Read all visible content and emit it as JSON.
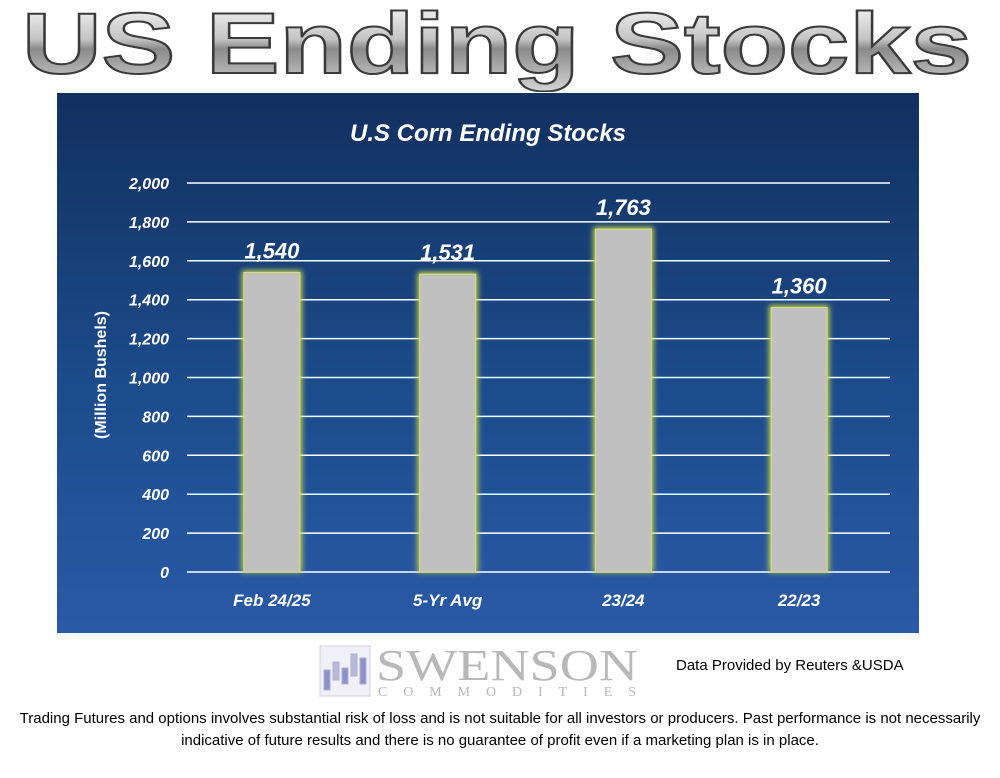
{
  "headline": "US Ending Stocks",
  "chart_data": {
    "type": "bar",
    "title": "U.S Corn Ending Stocks",
    "xlabel": "",
    "ylabel": "(Million Bushels)",
    "categories": [
      "Feb 24/25",
      "5-Yr Avg",
      "23/24",
      "22/23"
    ],
    "values": [
      1540,
      1531,
      1763,
      1360
    ],
    "value_labels": [
      "1,540",
      "1,531",
      "1,763",
      "1,360"
    ],
    "ylim": [
      0,
      2000
    ],
    "yticks": [
      0,
      200,
      400,
      600,
      800,
      1000,
      1200,
      1400,
      1600,
      1800,
      2000
    ],
    "ytick_labels": [
      "0",
      "200",
      "400",
      "600",
      "800",
      "1,000",
      "1,200",
      "1,400",
      "1,600",
      "1,800",
      "2,000"
    ],
    "grid": true,
    "legend": "none",
    "colors": {
      "background_top": "#12305f",
      "background_bottom": "#2a5aa6",
      "bar": "#c0c0c0",
      "bar_glow": "#c8d84a",
      "grid": "#ffffff",
      "text": "#ffffff"
    }
  },
  "logo": {
    "name": "SWENSON",
    "subtitle": "COMMODITIES"
  },
  "credit": "Data Provided by Reuters &USDA",
  "disclaimer": "Trading Futures and options involves substantial risk of loss and is not suitable for all investors or producers. Past performance is not necessarily indicative of future results and there is no guarantee of profit even if a marketing plan is in place."
}
